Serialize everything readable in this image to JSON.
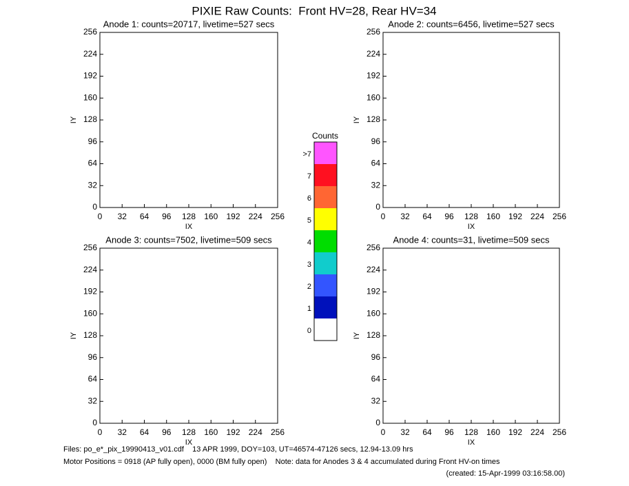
{
  "title": "PIXIE Raw Counts:  Front HV=28, Rear HV=34",
  "chart_data": [
    {
      "type": "image",
      "title": "Anode 1: counts=20717, livetime=527 secs",
      "xlabel": "IX",
      "ylabel": "IY",
      "xlim": [
        0,
        256
      ],
      "ylim": [
        0,
        256
      ],
      "xticks": [
        0,
        32,
        64,
        96,
        128,
        160,
        192,
        224,
        256
      ],
      "yticks": [
        0,
        32,
        64,
        96,
        128,
        160,
        192,
        224,
        256
      ]
    },
    {
      "type": "image",
      "title": "Anode 2: counts=6456, livetime=527 secs",
      "xlabel": "IX",
      "ylabel": "IY",
      "xlim": [
        0,
        256
      ],
      "ylim": [
        0,
        256
      ],
      "xticks": [
        0,
        32,
        64,
        96,
        128,
        160,
        192,
        224,
        256
      ],
      "yticks": [
        0,
        32,
        64,
        96,
        128,
        160,
        192,
        224,
        256
      ]
    },
    {
      "type": "image",
      "title": "Anode 3: counts=7502, livetime=509 secs",
      "xlabel": "IX",
      "ylabel": "IY",
      "xlim": [
        0,
        256
      ],
      "ylim": [
        0,
        256
      ],
      "xticks": [
        0,
        32,
        64,
        96,
        128,
        160,
        192,
        224,
        256
      ],
      "yticks": [
        0,
        32,
        64,
        96,
        128,
        160,
        192,
        224,
        256
      ]
    },
    {
      "type": "image",
      "title": "Anode 4: counts=31, livetime=509 secs",
      "xlabel": "IX",
      "ylabel": "IY",
      "xlim": [
        0,
        256
      ],
      "ylim": [
        0,
        256
      ],
      "xticks": [
        0,
        32,
        64,
        96,
        128,
        160,
        192,
        224,
        256
      ],
      "yticks": [
        0,
        32,
        64,
        96,
        128,
        160,
        192,
        224,
        256
      ]
    }
  ],
  "colorbar": {
    "title": "Counts",
    "levels": [
      ">7",
      "7",
      "6",
      "5",
      "4",
      "3",
      "2",
      "1",
      "0"
    ],
    "colors": [
      "#ff55ff",
      "#ff1020",
      "#ff6633",
      "#ffff00",
      "#00dd00",
      "#11cccc",
      "#3355ff",
      "#0011bb",
      "#ffffff"
    ]
  },
  "footer": {
    "files": "Files: po_e*_pix_19990413_v01.cdf    13 APR 1999, DOY=103, UT=46574-47126 secs, 12.94-13.09 hrs",
    "motor": "Motor Positions = 0918 (AP fully open), 0000 (BM fully open)    Note: data for Anodes 3 & 4 accumulated during Front HV-on times",
    "created": "(created: 15-Apr-1999 03:16:58.00)"
  }
}
